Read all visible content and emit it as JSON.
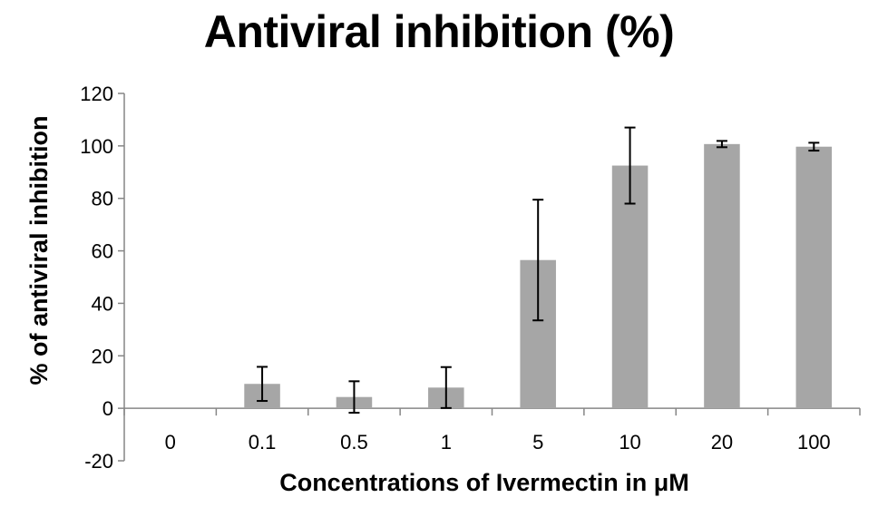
{
  "chart_data": {
    "type": "bar",
    "title": "Antiviral inhibition (%)",
    "xlabel": "Concentrations of Ivermectin in μM",
    "ylabel": "% of antiviral inhibition",
    "categories": [
      "0",
      "0.1",
      "0.5",
      "1",
      "5",
      "10",
      "20",
      "100"
    ],
    "values": [
      0,
      9.3,
      4.3,
      7.9,
      56.5,
      92.5,
      100.7,
      99.7
    ],
    "errors": [
      0,
      6.5,
      6,
      7.8,
      23,
      14.5,
      1.2,
      1.5
    ],
    "ylim": [
      -20,
      120
    ],
    "yticks": [
      -20,
      0,
      20,
      40,
      60,
      80,
      100,
      120
    ],
    "bar_color": "#a6a6a6",
    "grid": false,
    "legend": false
  }
}
